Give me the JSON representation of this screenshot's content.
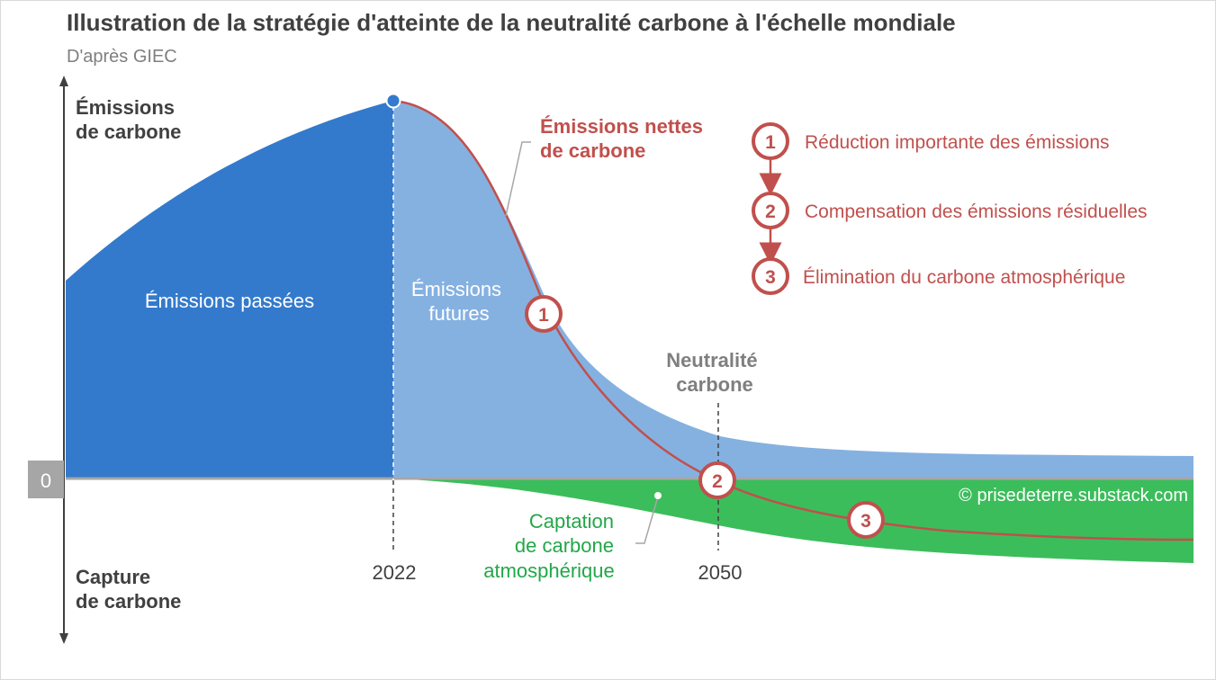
{
  "header": {
    "title": "Illustration de la stratégie d'atteinte de la neutralité carbone à l'échelle mondiale",
    "subtitle": "D'après GIEC"
  },
  "axis": {
    "top_label": [
      "Émissions",
      "de carbone"
    ],
    "bottom_label": [
      "Capture",
      "de carbone"
    ],
    "zero_label": "0"
  },
  "years": {
    "start": "2022",
    "neutral": "2050"
  },
  "areas": {
    "past": "Émissions passées",
    "future": [
      "Émissions",
      "futures"
    ],
    "capture": [
      "Captation",
      "de carbone",
      "atmosphérique"
    ]
  },
  "net_label": [
    "Émissions nettes",
    "de carbone"
  ],
  "neutrality_label": [
    "Neutralité",
    "carbone"
  ],
  "legend": [
    {
      "num": "1",
      "text": "Réduction importante des émissions"
    },
    {
      "num": "2",
      "text": "Compensation des émissions résiduelles"
    },
    {
      "num": "3",
      "text": "Élimination du carbone atmosphérique"
    }
  ],
  "markers": [
    "1",
    "2",
    "3"
  ],
  "copyright": "© prisedeterre.substack.com",
  "colors": {
    "past": "#337acc",
    "future": "#85b1e1",
    "capture": "#3cbd5b",
    "net_line": "#c0504d",
    "zero_line": "#a6a6a6",
    "text_dark": "#404040",
    "text_grey": "#7f7f7f",
    "capture_text": "#22a748"
  }
}
